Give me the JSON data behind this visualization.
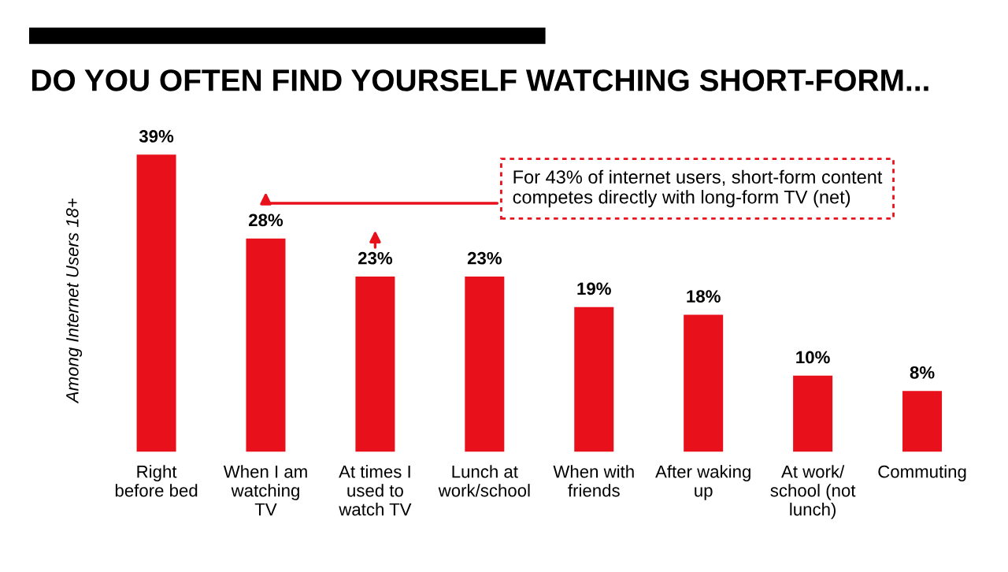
{
  "chart_data": {
    "type": "bar",
    "title": "DO YOU OFTEN FIND YOURSELF WATCHING SHORT-FORM...",
    "ylabel": "Among Internet Users 18+",
    "categories": [
      "Right\nbefore bed",
      "When I am\nwatching\nTV",
      "At times I\nused to\nwatch TV",
      "Lunch at\nwork/school",
      "When with\nfriends",
      "After waking\nup",
      "At work/\nschool (not\nlunch)",
      "Commuting"
    ],
    "values": [
      39,
      28,
      23,
      23,
      19,
      18,
      10,
      8
    ],
    "value_labels": [
      "39%",
      "28%",
      "23%",
      "23%",
      "19%",
      "18%",
      "10%",
      "8%"
    ],
    "color": "#e8101a",
    "annotations": [
      "For 43% of internet users, short-form content\ncompetes directly with long-form TV (net)"
    ],
    "grid": false,
    "legend": false
  }
}
